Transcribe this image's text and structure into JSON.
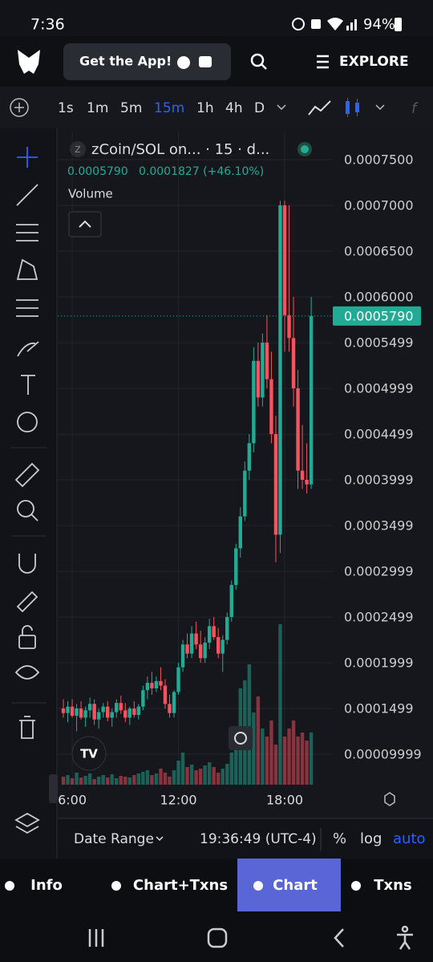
{
  "status_bar": {
    "time": "7:36",
    "battery": "94%"
  },
  "header": {
    "get_app": "Get the App!",
    "explore": "EXPLORE"
  },
  "timeframes": [
    "1s",
    "1m",
    "5m",
    "15m",
    "1h",
    "4h",
    "D"
  ],
  "active_timeframe": 3,
  "chart_data": {
    "type": "candlestick",
    "icon_letter": "Z",
    "title": "zCoin/SOL on... · 15 · d...",
    "legend_close": "0.0005790",
    "legend_change": "0.0001827 (+46.10%)",
    "volume_label": "Volume",
    "up_color": "#22ab94",
    "down_color": "#f7525f",
    "grid": true,
    "categories": [
      null,
      null,
      "6:00",
      null,
      null,
      null,
      null,
      null,
      null,
      null,
      null,
      null,
      null,
      null,
      null,
      null,
      null,
      null,
      null,
      null,
      null,
      null,
      null,
      null,
      null,
      null,
      "12:00",
      null,
      null,
      null,
      null,
      null,
      null,
      null,
      null,
      null,
      null,
      null,
      null,
      null,
      null,
      null,
      null,
      null,
      null,
      null,
      null,
      null,
      null,
      null,
      "18:00",
      null,
      null,
      null,
      null,
      null,
      null
    ],
    "open": [
      0.00015,
      0.000145,
      0.000152,
      0.000142,
      0.00015,
      0.00014,
      0.000148,
      0.000155,
      0.000138,
      0.000146,
      0.000152,
      0.00014,
      0.000146,
      0.000156,
      0.000148,
      0.00014,
      0.00015,
      0.000143,
      0.000152,
      0.00017,
      0.000178,
      0.000172,
      0.00018,
      0.000175,
      0.000155,
      0.000145,
      0.000168,
      0.000195,
      0.00022,
      0.00021,
      0.000232,
      0.00022,
      0.000205,
      0.000222,
      0.00024,
      0.000228,
      0.00021,
      0.000225,
      0.00025,
      0.000285,
      0.000325,
      0.00036,
      0.00041,
      0.00044,
      0.00053,
      0.00049,
      0.00055,
      0.00051,
      0.00045,
      0.00034,
      0.0007,
      0.00058,
      0.000555,
      0.0005,
      0.00041,
      0.0004,
      0.000395
    ],
    "high": [
      0.00016,
      0.000158,
      0.00016,
      0.000155,
      0.000158,
      0.000152,
      0.000162,
      0.00016,
      0.00015,
      0.000156,
      0.000158,
      0.00015,
      0.00016,
      0.000164,
      0.000156,
      0.000152,
      0.000158,
      0.000155,
      0.000175,
      0.000185,
      0.00019,
      0.000185,
      0.000195,
      0.000182,
      0.000165,
      0.00017,
      0.0002,
      0.000225,
      0.000232,
      0.00024,
      0.000245,
      0.000235,
      0.000228,
      0.000248,
      0.00025,
      0.000238,
      0.00023,
      0.000255,
      0.00029,
      0.00033,
      0.00037,
      0.00042,
      0.00045,
      0.000545,
      0.00055,
      0.00056,
      0.00058,
      0.00054,
      0.00047,
      0.000705,
      0.000705,
      0.0007,
      0.0006,
      0.00052,
      0.00046,
      0.00044,
      0.0006
    ],
    "low": [
      0.00014,
      0.000135,
      0.00014,
      0.000125,
      0.000138,
      0.00013,
      0.00014,
      0.000132,
      0.000128,
      0.00014,
      0.000136,
      0.00013,
      0.00014,
      0.000144,
      0.000135,
      0.000132,
      0.00014,
      0.000138,
      0.000148,
      0.00016,
      0.000165,
      0.000168,
      0.00017,
      0.00015,
      0.00014,
      0.00014,
      0.000165,
      0.00019,
      0.000205,
      0.000205,
      0.000215,
      0.0002,
      0.0002,
      0.000215,
      0.000225,
      0.000205,
      0.00019,
      0.00022,
      0.000245,
      0.00028,
      0.000315,
      0.000355,
      0.0004,
      0.00043,
      0.00048,
      0.00048,
      0.0005,
      0.00044,
      0.00031,
      0.00032,
      0.00054,
      0.00054,
      0.00048,
      0.00039,
      0.00039,
      0.000385,
      0.00039
    ],
    "close": [
      0.000145,
      0.000152,
      0.000142,
      0.00015,
      0.00014,
      0.000148,
      0.000155,
      0.000138,
      0.000146,
      0.000152,
      0.00014,
      0.000146,
      0.000156,
      0.000148,
      0.00014,
      0.00015,
      0.000143,
      0.000152,
      0.00017,
      0.000178,
      0.000172,
      0.00018,
      0.000175,
      0.000155,
      0.000145,
      0.000168,
      0.000195,
      0.00022,
      0.00021,
      0.000232,
      0.00022,
      0.000205,
      0.000222,
      0.00024,
      0.000228,
      0.00021,
      0.000225,
      0.00025,
      0.000285,
      0.000325,
      0.00036,
      0.00041,
      0.00044,
      0.00053,
      0.00049,
      0.00055,
      0.00051,
      0.00045,
      0.00034,
      0.0007,
      0.00058,
      0.000555,
      0.0005,
      0.00041,
      0.0004,
      0.000395,
      0.000579
    ],
    "volume": [
      10,
      12,
      8,
      15,
      9,
      11,
      14,
      7,
      10,
      12,
      9,
      13,
      8,
      11,
      10,
      9,
      12,
      14,
      16,
      18,
      12,
      14,
      20,
      15,
      10,
      18,
      30,
      40,
      22,
      25,
      18,
      20,
      24,
      28,
      22,
      15,
      20,
      26,
      40,
      60,
      120,
      130,
      150,
      90,
      110,
      70,
      60,
      80,
      50,
      200,
      60,
      70,
      80,
      60,
      65,
      55,
      65
    ],
    "ylim": [
      6.67e-05,
      0.0007754
    ],
    "yticks": [
      {
        "value": 0.00075,
        "label": "0.0007500"
      },
      {
        "value": 0.0007,
        "label": "0.0007000"
      },
      {
        "value": 0.00065,
        "label": "0.0006500"
      },
      {
        "value": 0.0006,
        "label": "0.0006000"
      },
      0.0005499,
      0.0004999,
      0.0004499,
      0.0003999,
      0.0003499,
      0.0002999,
      0.0002499,
      0.0001999,
      0.0001499,
      9.999e-05
    ],
    "last_price": {
      "value": 0.000579,
      "label": "0.0005790"
    }
  },
  "bottom_bar": {
    "date_range": "Date Range",
    "time": "19:36:49 (UTC-4)",
    "percent": "%",
    "log": "log",
    "auto": "auto"
  },
  "tabs": [
    "Info",
    "Chart+Txns",
    "Chart",
    "Txns"
  ],
  "active_tab": 2
}
